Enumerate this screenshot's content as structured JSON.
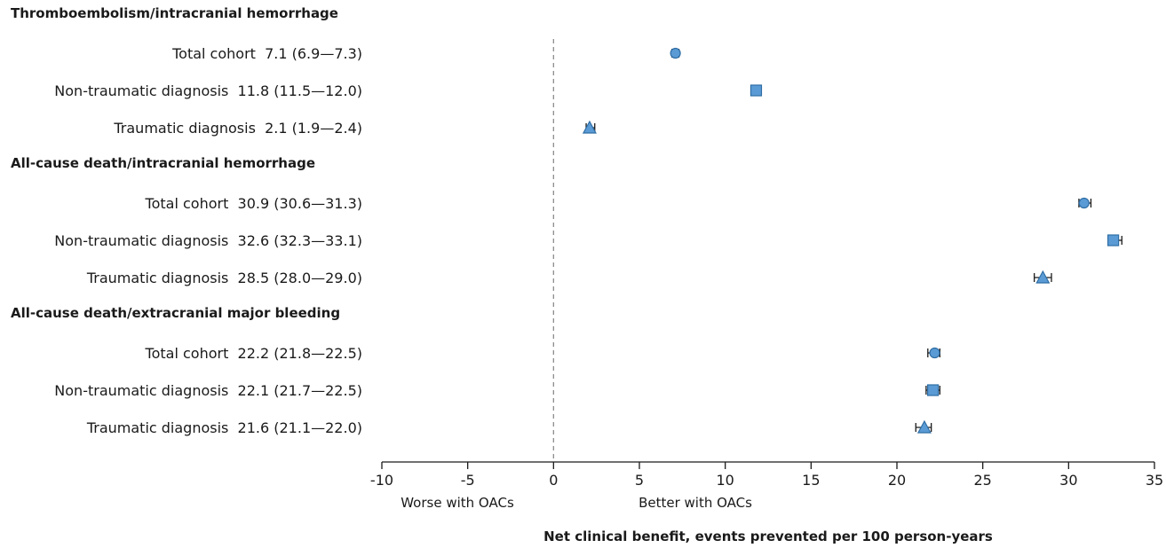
{
  "chart_data": {
    "type": "forest",
    "xlabel": "Net clinical benefit, events prevented per 100 person-years",
    "xlim": [
      -10,
      35
    ],
    "xticks": [
      -10,
      -5,
      0,
      5,
      10,
      15,
      20,
      25,
      30,
      35
    ],
    "reference_line": 0,
    "left_annotation": "Worse with OACs",
    "right_annotation": "Better with OACs",
    "marker_color": "#5b9bd5",
    "groups": [
      {
        "heading": "Thromboembolism/intracranial hemorrhage",
        "rows": [
          {
            "label": "Total cohort",
            "value_text": "7.1 (6.9—7.3)",
            "estimate": 7.1,
            "lower": 6.9,
            "upper": 7.3,
            "marker": "circle"
          },
          {
            "label": "Non-traumatic diagnosis",
            "value_text": "11.8 (11.5—12.0)",
            "estimate": 11.8,
            "lower": 11.5,
            "upper": 12.0,
            "marker": "square"
          },
          {
            "label": "Traumatic diagnosis",
            "value_text": "2.1 (1.9—2.4)",
            "estimate": 2.1,
            "lower": 1.9,
            "upper": 2.4,
            "marker": "triangle"
          }
        ]
      },
      {
        "heading": "All-cause death/intracranial hemorrhage",
        "rows": [
          {
            "label": "Total cohort",
            "value_text": "30.9  (30.6—31.3)",
            "estimate": 30.9,
            "lower": 30.6,
            "upper": 31.3,
            "marker": "circle"
          },
          {
            "label": "Non-traumatic diagnosis",
            "value_text": "32.6  (32.3—33.1)",
            "estimate": 32.6,
            "lower": 32.3,
            "upper": 33.1,
            "marker": "square"
          },
          {
            "label": "Traumatic diagnosis",
            "value_text": "28.5  (28.0—29.0)",
            "estimate": 28.5,
            "lower": 28.0,
            "upper": 29.0,
            "marker": "triangle"
          }
        ]
      },
      {
        "heading": "All-cause death/extracranial major bleeding",
        "rows": [
          {
            "label": "Total cohort",
            "value_text": "22.2  (21.8—22.5)",
            "estimate": 22.2,
            "lower": 21.8,
            "upper": 22.5,
            "marker": "circle"
          },
          {
            "label": "Non-traumatic diagnosis",
            "value_text": "22.1  (21.7—22.5)",
            "estimate": 22.1,
            "lower": 21.7,
            "upper": 22.5,
            "marker": "square"
          },
          {
            "label": "Traumatic diagnosis",
            "value_text": "21.6  (21.1—22.0)",
            "estimate": 21.6,
            "lower": 21.1,
            "upper": 22.0,
            "marker": "triangle"
          }
        ]
      }
    ]
  }
}
